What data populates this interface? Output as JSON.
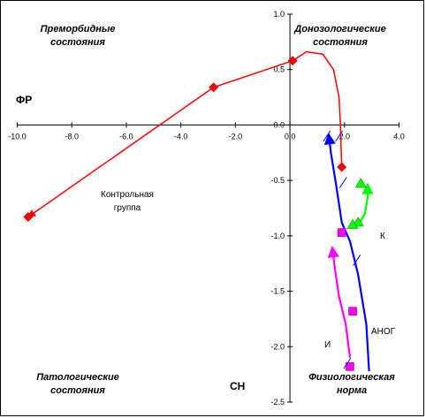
{
  "chart_data": {
    "type": "line",
    "title": "",
    "xlabel": "СН",
    "ylabel": "ФР",
    "xlim": [
      -10.0,
      4.0
    ],
    "ylim": [
      -2.5,
      1.0
    ],
    "x_ticks": [
      "-10.0",
      "-8.0",
      "-6.0",
      "-4.0",
      "-2.0",
      "0.0",
      "2.0",
      "4.0"
    ],
    "y_ticks": [
      "1.0",
      "0.5",
      "0.0",
      "-0.5",
      "-1.0",
      "-1.5",
      "-2.0",
      "-2.5"
    ],
    "quadrant_labels": {
      "top_left": [
        "Преморбидные",
        "состояния"
      ],
      "top_right": [
        "Донозологические",
        "состояния"
      ],
      "bottom_left": [
        "Патологические",
        "состояния"
      ],
      "bottom_right": [
        "Физиологическая",
        "норма"
      ]
    },
    "annotations": {
      "control": [
        "Контрольная",
        "группа"
      ],
      "k": "К",
      "anog": "АНОГ",
      "i": "И"
    },
    "series": [
      {
        "name": "Контрольная группа",
        "color": "#ff0000",
        "marker": "diamond",
        "points": [
          {
            "x": 1.9,
            "y": -0.38
          },
          {
            "x": 0.1,
            "y": 0.58
          },
          {
            "x": -2.8,
            "y": 0.34
          },
          {
            "x": -9.6,
            "y": -0.83
          }
        ],
        "path": [
          {
            "x": 1.9,
            "y": -0.38
          },
          {
            "x": 1.88,
            "y": -0.25
          },
          {
            "x": 1.85,
            "y": 0.0
          },
          {
            "x": 1.8,
            "y": 0.25
          },
          {
            "x": 1.6,
            "y": 0.5
          },
          {
            "x": 1.2,
            "y": 0.64
          },
          {
            "x": 0.6,
            "y": 0.66
          },
          {
            "x": 0.1,
            "y": 0.58
          },
          {
            "x": -2.8,
            "y": 0.34
          },
          {
            "x": -9.6,
            "y": -0.83
          }
        ]
      },
      {
        "name": "АНОГ",
        "color": "#0000ff",
        "marker": "none",
        "points": [],
        "path": [
          {
            "x": 2.9,
            "y": -2.22
          },
          {
            "x": 2.8,
            "y": -1.8
          },
          {
            "x": 2.5,
            "y": -1.35
          },
          {
            "x": 2.2,
            "y": -1.05
          },
          {
            "x": 1.9,
            "y": -0.88
          },
          {
            "x": 1.7,
            "y": -0.55
          },
          {
            "x": 1.5,
            "y": -0.25
          },
          {
            "x": 1.42,
            "y": -0.08
          }
        ]
      },
      {
        "name": "К",
        "color": "#00ff00",
        "marker": "triangle",
        "points": [
          {
            "x": 2.5,
            "y": -0.88
          },
          {
            "x": 2.3,
            "y": -0.9
          },
          {
            "x": 2.6,
            "y": -0.53
          }
        ],
        "path": [
          {
            "x": 2.3,
            "y": -0.9
          },
          {
            "x": 2.55,
            "y": -0.88
          },
          {
            "x": 2.75,
            "y": -0.8
          },
          {
            "x": 2.85,
            "y": -0.65
          },
          {
            "x": 2.85,
            "y": -0.53
          }
        ]
      },
      {
        "name": "И",
        "color": "#ff00ff",
        "marker": "square",
        "points": [
          {
            "x": 2.2,
            "y": -2.18
          },
          {
            "x": 2.3,
            "y": -1.68
          },
          {
            "x": 1.9,
            "y": -0.97
          }
        ],
        "path": [
          {
            "x": 2.2,
            "y": -2.1
          },
          {
            "x": 2.05,
            "y": -1.8
          },
          {
            "x": 1.8,
            "y": -1.55
          },
          {
            "x": 1.65,
            "y": -1.3
          },
          {
            "x": 1.55,
            "y": -1.1
          }
        ]
      }
    ]
  }
}
